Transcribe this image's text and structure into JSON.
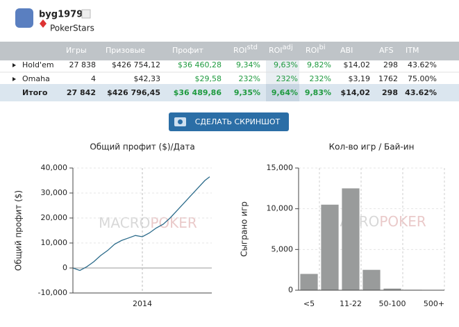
{
  "header": {
    "user": "byg1979",
    "site": "PokerStars"
  },
  "table": {
    "columns": [
      {
        "label": "Игры"
      },
      {
        "label": "Призовые"
      },
      {
        "label": "Профит"
      },
      {
        "label": "ROI",
        "sup": "std"
      },
      {
        "label": "ROI",
        "sup": "adj"
      },
      {
        "label": "ROI",
        "sup": "bi"
      },
      {
        "label": "ABI"
      },
      {
        "label": "AFS"
      },
      {
        "label": "ITM"
      }
    ],
    "rows": [
      [
        "Hold'em",
        "27 838",
        "$426 754,12",
        "$36 460,28",
        "9,34%",
        "9,63%",
        "9,82%",
        "$14,02",
        "298",
        "43.62%"
      ],
      [
        "Omaha",
        "4",
        "$42,33",
        "$29,58",
        "232%",
        "232%",
        "232%",
        "$3,19",
        "1762",
        "75.00%"
      ]
    ],
    "total": [
      "Итого",
      "27 842",
      "$426 796,45",
      "$36 489,86",
      "9,35%",
      "9,64%",
      "9,83%",
      "$14,02",
      "298",
      "43.62%"
    ]
  },
  "button": "СДЕЛАТЬ СКРИНШОТ",
  "watermark": [
    "MACRO",
    "POKER"
  ],
  "chart_data": [
    {
      "type": "line",
      "title": "Общий профит ($)/Дата",
      "y_label": "Общий профит ($)",
      "color": "#2a6a8a",
      "x": [
        2013.0,
        2013.1,
        2013.2,
        2013.3,
        2013.4,
        2013.5,
        2013.6,
        2013.7,
        2013.8,
        2013.9,
        2014.0,
        2014.1,
        2014.2,
        2014.3,
        2014.4,
        2014.5,
        2014.6,
        2014.7,
        2014.8,
        2014.9,
        2014.97
      ],
      "values": [
        0,
        -1000,
        500,
        2500,
        5000,
        7000,
        9500,
        11000,
        12000,
        13000,
        12500,
        14000,
        16000,
        17500,
        20000,
        23000,
        26000,
        29000,
        32000,
        35000,
        36500
      ],
      "xlim": [
        2013.0,
        2015.0
      ],
      "xticks": [
        2014
      ],
      "ylim": [
        -10000,
        40000
      ],
      "yticks": [
        {
          "value": -10000,
          "label": "-10,000"
        },
        0,
        {
          "value": 10000,
          "label": "10,000"
        },
        {
          "value": 20000,
          "label": "20,000"
        },
        {
          "value": 30000,
          "label": "30,000"
        },
        {
          "value": 40000,
          "label": "40,000"
        }
      ],
      "grid": true
    },
    {
      "type": "bar",
      "title": "Кол-во игр / Бай-ин",
      "y_label": "Сыграно игр",
      "color": "#999b9b",
      "categories": [
        "<5",
        null,
        "11-22",
        null,
        "50-100",
        null,
        "500+"
      ],
      "values": [
        2000,
        10500,
        12500,
        2500,
        200,
        50,
        30
      ],
      "ylim": [
        0,
        15000
      ],
      "yticks": [
        0,
        {
          "value": 5000,
          "label": "5,000"
        },
        {
          "value": 10000,
          "label": "10,000"
        },
        {
          "value": 15000,
          "label": "15,000"
        }
      ],
      "grid": true
    }
  ]
}
